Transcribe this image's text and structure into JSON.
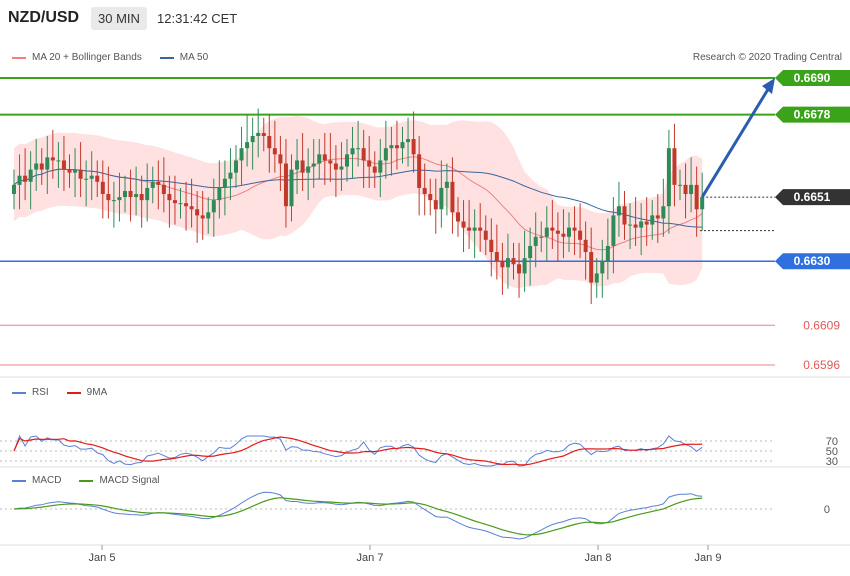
{
  "header": {
    "symbol": "NZD/USD",
    "timeframe": "30 MIN",
    "time": "12:31:42 CET"
  },
  "legend_main": [
    {
      "label": "MA 20 + Bollinger Bands",
      "color": "#f08080"
    },
    {
      "label": "MA 50",
      "color": "#3a66a0"
    }
  ],
  "copyright": "Research © 2020 Trading Central",
  "legend_rsi": [
    {
      "label": "RSI",
      "color": "#5b7fd6"
    },
    {
      "label": "9MA",
      "color": "#e31a1a"
    }
  ],
  "legend_macd": [
    {
      "label": "MACD",
      "color": "#5b7fd6"
    },
    {
      "label": "MACD Signal",
      "color": "#4a9a1a"
    }
  ],
  "colors": {
    "up": "#2e8b57",
    "down": "#c0392b",
    "resistance": "#3aa31a",
    "support": "#2f6fe0",
    "pivot_red": "#f08080",
    "band_fill": "#ffe1e1"
  },
  "chart_data": [
    {
      "type": "candlestick",
      "x_labels": [
        "Jan 5",
        "Jan 7",
        "Jan 8",
        "Jan 9"
      ],
      "y_range": [
        0.659,
        0.6695
      ],
      "current_price": "0.6651",
      "levels": [
        {
          "value": 0.669,
          "label": "0.6690",
          "kind": "resistance"
        },
        {
          "value": 0.6678,
          "label": "0.6678",
          "kind": "resistance"
        },
        {
          "value": 0.663,
          "label": "0.6630",
          "kind": "support"
        },
        {
          "value": 0.6609,
          "label": "0.6609",
          "kind": "pivot"
        },
        {
          "value": 0.6596,
          "label": "0.6596",
          "kind": "pivot"
        }
      ],
      "closes": [
        0.6655,
        0.6658,
        0.6656,
        0.666,
        0.6662,
        0.666,
        0.6664,
        0.6663,
        0.6663,
        0.666,
        0.6659,
        0.666,
        0.6657,
        0.6657,
        0.6658,
        0.6656,
        0.6652,
        0.665,
        0.665,
        0.6651,
        0.6653,
        0.6651,
        0.6652,
        0.665,
        0.6654,
        0.6656,
        0.6655,
        0.6652,
        0.665,
        0.6649,
        0.6649,
        0.6648,
        0.6647,
        0.6645,
        0.6644,
        0.6646,
        0.665,
        0.6654,
        0.6657,
        0.6659,
        0.6663,
        0.6667,
        0.6669,
        0.6671,
        0.6672,
        0.6671,
        0.6667,
        0.6665,
        0.6662,
        0.6648,
        0.666,
        0.6663,
        0.6659,
        0.6661,
        0.6662,
        0.6665,
        0.6663,
        0.6662,
        0.666,
        0.6661,
        0.6665,
        0.6667,
        0.6667,
        0.6663,
        0.6661,
        0.6659,
        0.6663,
        0.6667,
        0.6668,
        0.6667,
        0.6669,
        0.667,
        0.6665,
        0.6654,
        0.6652,
        0.665,
        0.6647,
        0.6654,
        0.6656,
        0.6646,
        0.6643,
        0.6641,
        0.664,
        0.6641,
        0.664,
        0.6637,
        0.6633,
        0.663,
        0.6628,
        0.6631,
        0.6629,
        0.6626,
        0.6631,
        0.6635,
        0.6638,
        0.6638,
        0.6641,
        0.664,
        0.6639,
        0.6638,
        0.6641,
        0.664,
        0.6637,
        0.6633,
        0.6623,
        0.6626,
        0.663,
        0.6635,
        0.6645,
        0.6648,
        0.6642,
        0.6642,
        0.6641,
        0.6643,
        0.6642,
        0.6645,
        0.6644,
        0.6648,
        0.6667,
        0.6655,
        0.6655,
        0.6652,
        0.6655,
        0.6647,
        0.6651
      ]
    },
    {
      "type": "line",
      "name": "RSI panel",
      "y_ticks": [
        70,
        50,
        30
      ],
      "x_labels": [
        "Jan 5",
        "Jan 7",
        "Jan 8",
        "Jan 9"
      ]
    },
    {
      "type": "line",
      "name": "MACD panel",
      "y_ticks": [
        0
      ],
      "x_labels": [
        "Jan 5",
        "Jan 7",
        "Jan 8",
        "Jan 9"
      ]
    }
  ]
}
